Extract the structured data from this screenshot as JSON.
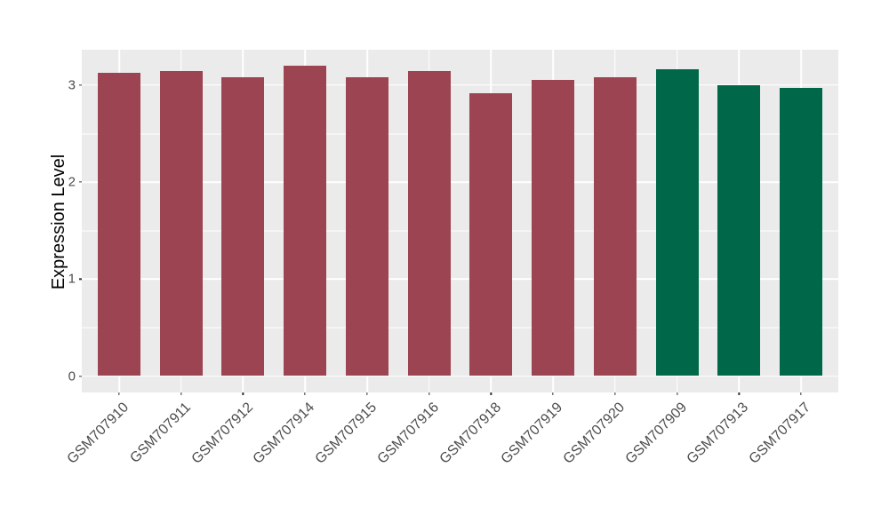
{
  "figure": {
    "title": "",
    "background_color": "#FFFFFF"
  },
  "chart_data": {
    "type": "bar",
    "title": "",
    "xlabel": "",
    "ylabel": "Expression Level",
    "categories": [
      "GSM707910",
      "GSM707911",
      "GSM707912",
      "GSM707914",
      "GSM707915",
      "GSM707916",
      "GSM707918",
      "GSM707919",
      "GSM707920",
      "GSM707909",
      "GSM707913",
      "GSM707917"
    ],
    "values": [
      3.13,
      3.15,
      3.08,
      3.2,
      3.08,
      3.15,
      2.92,
      3.05,
      3.08,
      3.16,
      3.0,
      2.97
    ],
    "bar_colors": [
      "#9D4452",
      "#9D4452",
      "#9D4452",
      "#9D4452",
      "#9D4452",
      "#9D4452",
      "#9D4452",
      "#9D4452",
      "#9D4452",
      "#006849",
      "#006849",
      "#006849"
    ],
    "group_colors": {
      "maroon_group": "#9D4452",
      "green_group": "#006849"
    },
    "ylim": [
      0,
      3.2
    ],
    "yticks": [
      0,
      1,
      2,
      3
    ],
    "ytick_labels": [
      "0",
      "1",
      "2",
      "3"
    ],
    "yticks_minor": [
      0.5,
      1.5,
      2.5
    ],
    "grid": "on",
    "legend": "none",
    "panel_background": "#EBEBEB",
    "gridline_color": "#FFFFFF",
    "tick_color": "#333333",
    "axis_text_color": "#4D4D4D",
    "axis_title_color": "#000000",
    "x_label_rotation_deg": 45
  }
}
